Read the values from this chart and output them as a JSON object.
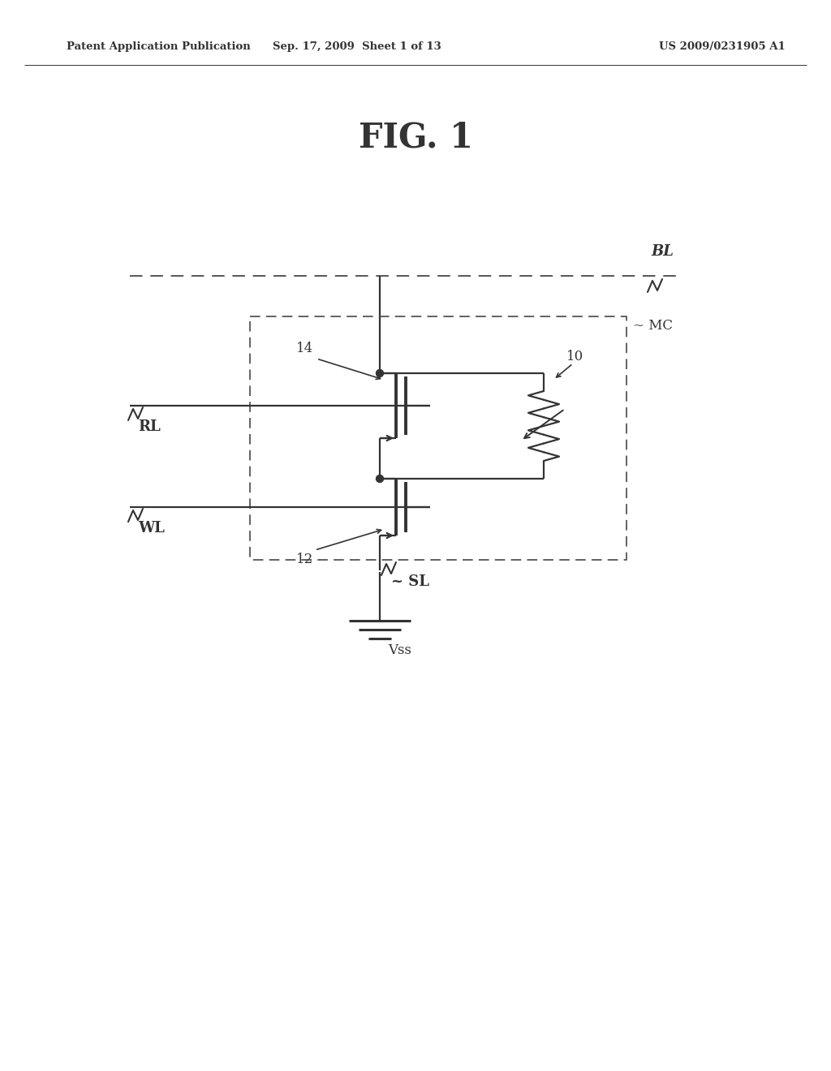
{
  "bg_color": "#ffffff",
  "line_color": "#333333",
  "dash_color": "#555555",
  "header_left": "Patent Application Publication",
  "header_mid": "Sep. 17, 2009  Sheet 1 of 13",
  "header_right": "US 2009/0231905 A1",
  "fig_title": "FIG. 1",
  "label_BL": "BL",
  "label_MC": "~ MC",
  "label_RL": "RL",
  "label_WL": "WL",
  "label_SL": "~ SL",
  "label_Vss": "Vss",
  "label_10": "10",
  "label_12": "12",
  "label_14": "14"
}
